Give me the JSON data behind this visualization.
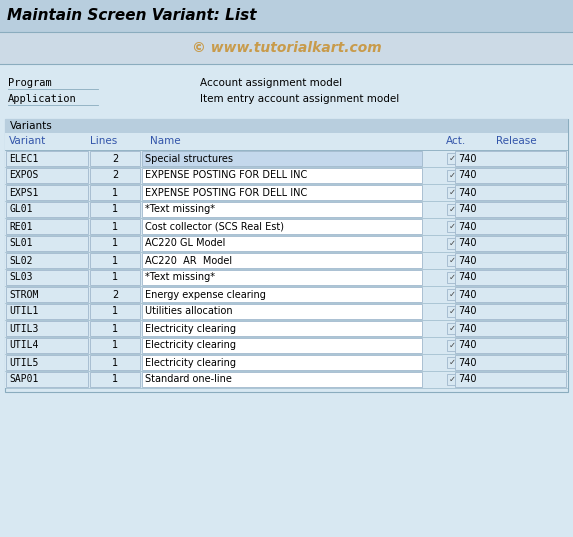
{
  "title": "Maintain Screen Variant: List",
  "watermark": "© www.tutorialkart.com",
  "title_bg": "#b8cede",
  "watermark_bg": "#ccdae6",
  "body_bg": "#d8e8f2",
  "white": "#ffffff",
  "program_label": "Program",
  "program_value": "Account assignment model",
  "application_label": "Application",
  "application_value": "Item entry account assignment model",
  "variants_label": "Variants",
  "col_header_color": "#3355aa",
  "rows": [
    {
      "variant": "ELEC1",
      "lines": "2",
      "name": "Special structures",
      "act": true,
      "release": "740",
      "name_highlighted": true
    },
    {
      "variant": "EXPOS",
      "lines": "2",
      "name": "EXPENSE POSTING FOR DELL INC",
      "act": true,
      "release": "740",
      "name_highlighted": false
    },
    {
      "variant": "EXPS1",
      "lines": "1",
      "name": "EXPENSE POSTING FOR DELL INC",
      "act": true,
      "release": "740",
      "name_highlighted": false
    },
    {
      "variant": "GL01",
      "lines": "1",
      "name": "*Text missing*",
      "act": true,
      "release": "740",
      "name_highlighted": false
    },
    {
      "variant": "RE01",
      "lines": "1",
      "name": "Cost collector (SCS Real Est)",
      "act": true,
      "release": "740",
      "name_highlighted": false
    },
    {
      "variant": "SL01",
      "lines": "1",
      "name": "AC220 GL Model",
      "act": true,
      "release": "740",
      "name_highlighted": false
    },
    {
      "variant": "SL02",
      "lines": "1",
      "name": "AC220  AR  Model",
      "act": true,
      "release": "740",
      "name_highlighted": false
    },
    {
      "variant": "SL03",
      "lines": "1",
      "name": "*Text missing*",
      "act": true,
      "release": "740",
      "name_highlighted": false
    },
    {
      "variant": "STROM",
      "lines": "2",
      "name": "Energy expense clearing",
      "act": true,
      "release": "740",
      "name_highlighted": false
    },
    {
      "variant": "UTIL1",
      "lines": "1",
      "name": "Utilities allocation",
      "act": true,
      "release": "740",
      "name_highlighted": false
    },
    {
      "variant": "UTIL3",
      "lines": "1",
      "name": "Electricity clearing",
      "act": true,
      "release": "740",
      "name_highlighted": false
    },
    {
      "variant": "UTIL4",
      "lines": "1",
      "name": "Electricity clearing",
      "act": true,
      "release": "740",
      "name_highlighted": false
    },
    {
      "variant": "UTIL5",
      "lines": "1",
      "name": "Electricity clearing",
      "act": true,
      "release": "740",
      "name_highlighted": false
    },
    {
      "variant": "SAP01",
      "lines": "1",
      "name": "Standard one-line",
      "act": true,
      "release": "740",
      "name_highlighted": false
    }
  ],
  "title_fontsize": 11,
  "info_fontsize": 7.5,
  "col_fontsize": 7.5,
  "row_fontsize": 7,
  "watermark_fontsize": 10,
  "border_color": "#8aacbe",
  "cell_border": "#a0b8cc",
  "highlight_name_bg": "#c4d8ec"
}
